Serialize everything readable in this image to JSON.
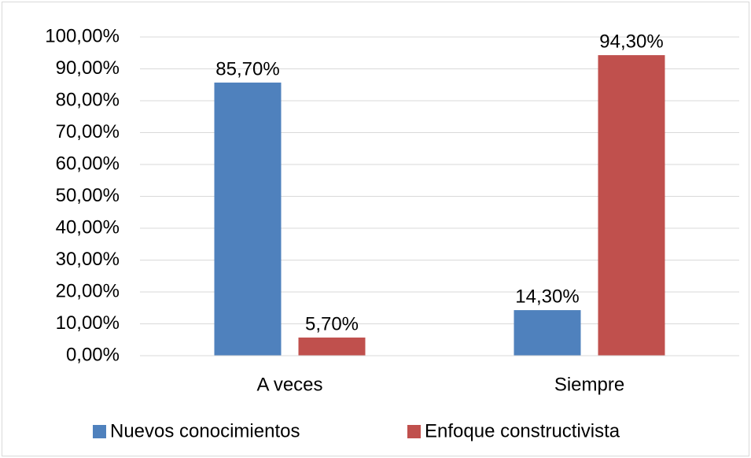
{
  "chart_data": {
    "type": "bar",
    "categories": [
      "A veces",
      "Siempre"
    ],
    "series": [
      {
        "name": "Nuevos conocimientos",
        "color": "#4f81bd",
        "values": [
          85.7,
          14.3
        ],
        "value_labels": [
          "85,70%",
          "14,30%"
        ]
      },
      {
        "name": "Enfoque constructivista",
        "color": "#c0504d",
        "values": [
          5.7,
          94.3
        ],
        "value_labels": [
          "5,70%",
          "94,30%"
        ]
      }
    ],
    "ylim": [
      0,
      100
    ],
    "yticks": [
      {
        "value": 0,
        "label": "0,00%"
      },
      {
        "value": 10,
        "label": "10,00%"
      },
      {
        "value": 20,
        "label": "20,00%"
      },
      {
        "value": 30,
        "label": "30,00%"
      },
      {
        "value": 40,
        "label": "40,00%"
      },
      {
        "value": 50,
        "label": "50,00%"
      },
      {
        "value": 60,
        "label": "60,00%"
      },
      {
        "value": 70,
        "label": "70,00%"
      },
      {
        "value": 80,
        "label": "80,00%"
      },
      {
        "value": 90,
        "label": "90,00%"
      },
      {
        "value": 100,
        "label": "100,00%"
      }
    ],
    "grid": true,
    "legend": "bottom"
  }
}
